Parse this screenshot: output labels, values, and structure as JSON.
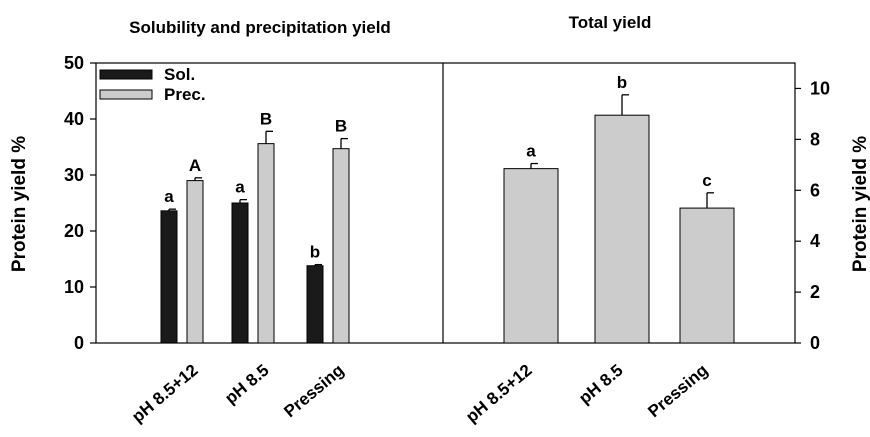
{
  "chart_data": [
    {
      "type": "bar",
      "title": "Solubility and precipitation yield",
      "xlabel": "",
      "ylabel": "Protein yield %",
      "ylim": [
        0,
        50
      ],
      "yticks": [
        0,
        10,
        20,
        30,
        40,
        50
      ],
      "categories": [
        "pH 8.5+12",
        "pH 8.5",
        "Pressing"
      ],
      "series": [
        {
          "name": "Sol.",
          "color": "#1a1a1a",
          "values": [
            23.6,
            25.0,
            13.8
          ],
          "errors": [
            0.3,
            0.6,
            0.2
          ],
          "labels": [
            "a",
            "a",
            "b"
          ]
        },
        {
          "name": "Prec.",
          "color": "#cccccc",
          "values": [
            29.0,
            35.6,
            34.7
          ],
          "errors": [
            0.5,
            2.2,
            1.8
          ],
          "labels": [
            "A",
            "B",
            "B"
          ]
        }
      ],
      "legend": "top-left"
    },
    {
      "type": "bar",
      "title": "Total yield",
      "xlabel": "",
      "ylabel": "Protein yield %",
      "ylim": [
        0,
        11
      ],
      "yticks": [
        0,
        2,
        4,
        6,
        8,
        10
      ],
      "yaxis_side": "right",
      "categories": [
        "pH 8.5+12",
        "pH 8.5",
        "Pressing"
      ],
      "series": [
        {
          "name": "",
          "color": "#cccccc",
          "values": [
            6.85,
            8.95,
            5.3
          ],
          "errors": [
            0.2,
            0.8,
            0.6
          ],
          "labels": [
            "a",
            "b",
            "c"
          ]
        }
      ]
    }
  ]
}
